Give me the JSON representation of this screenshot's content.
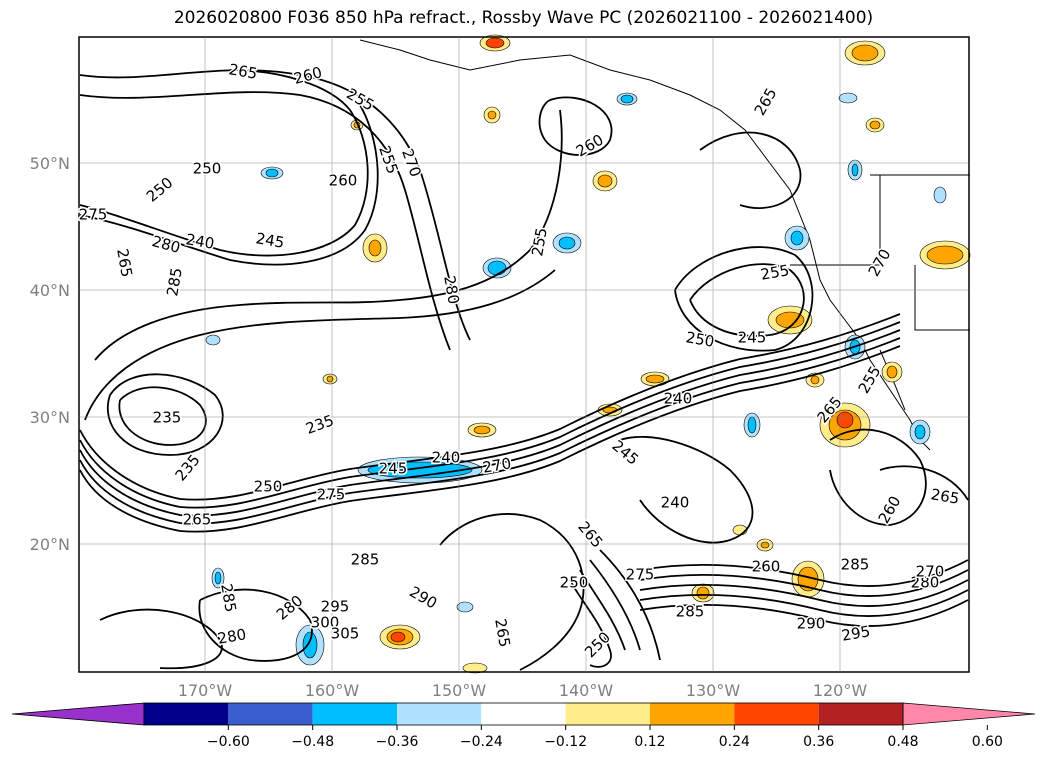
{
  "title": "2026020800 F036 850 hPa refract., Rossby Wave PC (2026021100 - 2026021400)",
  "lat_labels": [
    "50°N",
    "40°N",
    "30°N",
    "20°N"
  ],
  "lon_labels": [
    "170°W",
    "160°W",
    "150°W",
    "140°W",
    "130°W",
    "120°W"
  ],
  "contour_labels": [
    "265",
    "260",
    "255",
    "250",
    "255",
    "260",
    "270",
    "250",
    "275",
    "280",
    "285",
    "245",
    "240",
    "265",
    "280",
    "255",
    "260",
    "265",
    "255",
    "270",
    "250",
    "245",
    "235",
    "235",
    "235",
    "245",
    "240",
    "250",
    "265",
    "275",
    "270",
    "240",
    "245",
    "240",
    "265",
    "260",
    "265",
    "285",
    "290",
    "285",
    "280",
    "275",
    "285",
    "295",
    "300",
    "305",
    "280",
    "265",
    "250",
    "250",
    "260",
    "285",
    "290",
    "295",
    "280",
    "270",
    "255",
    "265"
  ],
  "colorbar": {
    "ticks": [
      "−0.60",
      "−0.48",
      "−0.36",
      "−0.24",
      "−0.12",
      "0.12",
      "0.24",
      "0.36",
      "0.48",
      "0.60"
    ],
    "colors": [
      "#9932cc",
      "#00008b",
      "#3a5fcd",
      "#00bfff",
      "#b0e2ff",
      "#ffffff",
      "#ffec8b",
      "#ffa500",
      "#ff4500",
      "#b22222",
      "#ff88aa"
    ]
  }
}
